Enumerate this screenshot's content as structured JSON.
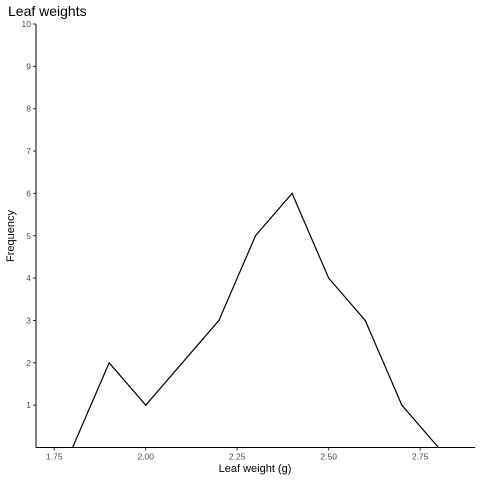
{
  "chart_data": {
    "type": "line",
    "title": "Leaf weights",
    "xlabel": "Leaf weight (g)",
    "ylabel": "Frequency",
    "xlim": [
      1.7,
      2.9
    ],
    "ylim": [
      0,
      10
    ],
    "x_ticks": [
      1.75,
      2.0,
      2.25,
      2.5,
      2.75
    ],
    "x_tick_labels": [
      "1.75",
      "2.00",
      "2.25",
      "2.50",
      "2.75"
    ],
    "y_ticks": [
      1,
      2,
      3,
      4,
      5,
      6,
      7,
      8,
      9,
      10
    ],
    "y_tick_labels": [
      "1",
      "2",
      "3",
      "4",
      "5",
      "6",
      "7",
      "8",
      "9",
      "10"
    ],
    "grid": false,
    "series": [
      {
        "x": [
          1.8,
          1.9,
          2.0,
          2.1,
          2.2,
          2.3,
          2.4,
          2.5,
          2.6,
          2.7,
          2.8
        ],
        "values": [
          0,
          2,
          1,
          2,
          3,
          5,
          6,
          4,
          3,
          1,
          0
        ],
        "color": "#000000"
      }
    ]
  }
}
